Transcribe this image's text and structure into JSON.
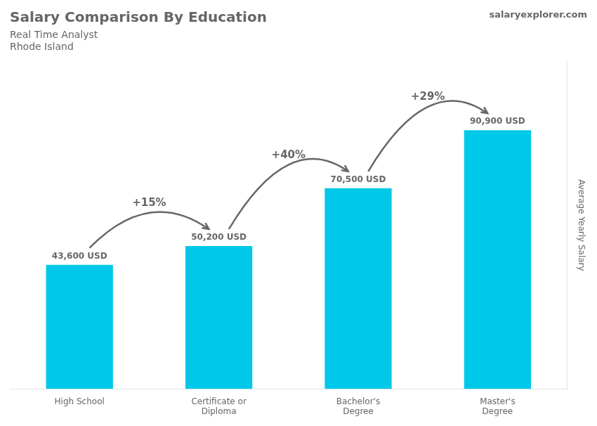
{
  "chart_data": {
    "type": "bar",
    "title": "Salary Comparison By Education",
    "subtitle": [
      "Real Time Analyst",
      "Rhode Island"
    ],
    "ylabel": "Average Yearly Salary",
    "categories": [
      "High School",
      "Certificate or\nDiploma",
      "Bachelor's\nDegree",
      "Master's\nDegree"
    ],
    "values": [
      43600,
      50200,
      70500,
      90900
    ],
    "value_labels": [
      "43,600 USD",
      "50,200 USD",
      "70,500 USD",
      "90,900 USD"
    ],
    "data_labels": true,
    "color": "#00c8e8",
    "ylim": [
      0,
      115000
    ],
    "yticks": [],
    "grid": false,
    "tick_labels": "x",
    "annotations": [
      {
        "text": "+15%",
        "from": "High School",
        "to": "Certificate or\nDiploma"
      },
      {
        "text": "+40%",
        "from": "Certificate or\nDiploma",
        "to": "Bachelor's\nDegree"
      },
      {
        "text": "+29%",
        "from": "Bachelor's\nDegree",
        "to": "Master's\nDegree"
      },
      {
        "text": "salaryexplorer.com"
      }
    ]
  }
}
